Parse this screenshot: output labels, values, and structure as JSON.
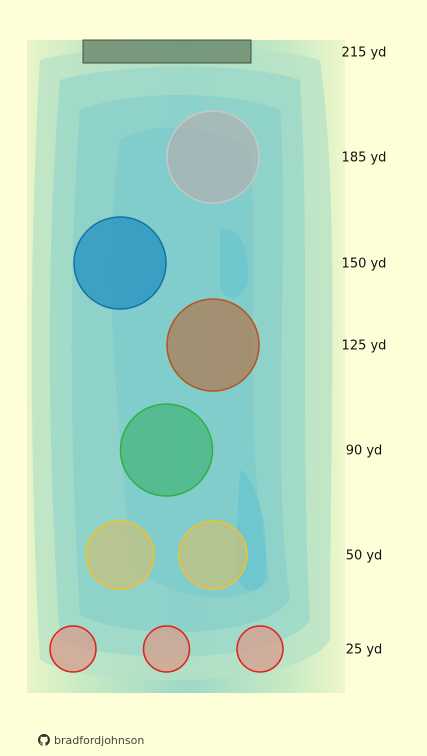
{
  "chart_data": {
    "type": "scatter",
    "title": "",
    "xlabel": "",
    "ylabel": "",
    "y_ticks": [
      {
        "value": 215,
        "label": "215 yd"
      },
      {
        "value": 185,
        "label": "185 yd"
      },
      {
        "value": 150,
        "label": "150 yd"
      },
      {
        "value": 125,
        "label": "125 yd"
      },
      {
        "value": 90,
        "label": "90 yd"
      },
      {
        "value": 50,
        "label": "50 yd"
      },
      {
        "value": 25,
        "label": "25 yd"
      }
    ],
    "green": {
      "color": "#6E8E6E"
    },
    "targets": [
      {
        "distance": 185,
        "lane": 1,
        "color": "#B0B0B0",
        "stroke": "#C8C8C8"
      },
      {
        "distance": 150,
        "lane": 0,
        "color": "#1F8FBF",
        "stroke": "#1570A8"
      },
      {
        "distance": 125,
        "lane": 1,
        "color": "#B07850",
        "stroke": "#B5531E"
      },
      {
        "distance": 90,
        "lane": 0.5,
        "color": "#45B47A",
        "stroke": "#2FB040"
      },
      {
        "distance": 50,
        "lane": 0,
        "color": "#C8C07A",
        "stroke": "#F2C12E"
      },
      {
        "distance": 50,
        "lane": 1,
        "color": "#C8C07A",
        "stroke": "#F2C12E"
      },
      {
        "distance": 25,
        "lane": 0,
        "color": "#D89A8A",
        "stroke": "#E0201E"
      },
      {
        "distance": 25,
        "lane": 0.5,
        "color": "#D89A8A",
        "stroke": "#E0201E"
      },
      {
        "distance": 25,
        "lane": 1,
        "color": "#D89A8A",
        "stroke": "#E0201E"
      }
    ],
    "colors": {
      "background": "#FEFED9",
      "fairway_outer": "#E9F5C9",
      "fairway_mid": "#B8E2C2",
      "fairway_inner": "#8FD2C9",
      "fairway_core": "#6FC8CF"
    },
    "grid": false,
    "legend": "none"
  },
  "credit": {
    "icon": "github-icon",
    "text": "bradfordjohnson"
  }
}
